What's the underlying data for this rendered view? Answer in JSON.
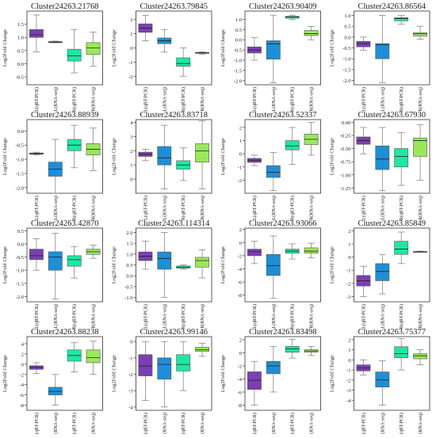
{
  "figure": {
    "colors": {
      "L(qRT-PCR)": "#7b3fb4",
      "L(RNA-seq)": "#1e8fd6",
      "R(qRT-PCR)": "#1de8a3",
      "R(RNA-seq)": "#9ae85a"
    }
  },
  "chart_data": [
    {
      "type": "box",
      "title": "Cluster24263.21768",
      "ylabel": "Log2Fold Change",
      "categories": [
        "L(qRT-PCR)",
        "L(RNA-seq)",
        "R(qRT-PCR)",
        "R(RNA-seq)"
      ],
      "ylim": [
        -0.8,
        2.0
      ],
      "yticks": [
        -0.5,
        0.0,
        0.5,
        1.0,
        1.5
      ],
      "series": [
        {
          "whisker_low": 0.45,
          "q1": 1.0,
          "median": 1.1,
          "q3": 1.3,
          "whisker_high": 1.85
        },
        {
          "whisker_low": 0.8,
          "q1": 0.8,
          "median": 0.82,
          "q3": 0.84,
          "whisker_high": 0.86
        },
        {
          "whisker_low": -0.35,
          "q1": 0.1,
          "median": 0.3,
          "q3": 0.55,
          "whisker_high": 1.3
        },
        {
          "whisker_low": -0.1,
          "q1": 0.35,
          "median": 0.6,
          "q3": 0.8,
          "whisker_high": 1.2
        }
      ]
    },
    {
      "type": "box",
      "title": "Cluster24263.79845",
      "ylabel": "Log2Fold Change",
      "categories": [
        "L(qRT-PCR)",
        "L(RNA-seq)",
        "R(qRT-PCR)",
        "R(RNA-seq)"
      ],
      "ylim": [
        -2.6,
        2.6
      ],
      "yticks": [
        -2,
        -1,
        0,
        1,
        2
      ],
      "series": [
        {
          "whisker_low": 0.5,
          "q1": 1.1,
          "median": 1.4,
          "q3": 1.7,
          "whisker_high": 2.3
        },
        {
          "whisker_low": -0.3,
          "q1": 0.3,
          "median": 0.5,
          "q3": 0.7,
          "whisker_high": 1.3
        },
        {
          "whisker_low": -2.0,
          "q1": -1.3,
          "median": -1.1,
          "q3": -0.7,
          "whisker_high": 0.0
        },
        {
          "whisker_low": -0.45,
          "q1": -0.38,
          "median": -0.35,
          "q3": -0.32,
          "whisker_high": -0.28
        }
      ]
    },
    {
      "type": "box",
      "title": "Cluster24263.90409",
      "ylabel": "Log2Fold Change",
      "categories": [
        "L(qRT-PCR)",
        "L(RNA-seq)",
        "R(qRT-PCR)",
        "R(RNA-seq)"
      ],
      "ylim": [
        -2.2,
        1.4
      ],
      "yticks": [
        -2.0,
        -1.5,
        -1.0,
        -0.5,
        0.0,
        0.5,
        1.0
      ],
      "series": [
        {
          "whisker_low": -1.0,
          "q1": -0.65,
          "median": -0.5,
          "q3": -0.35,
          "whisker_high": 0.1
        },
        {
          "whisker_low": -2.1,
          "q1": -0.95,
          "median": -0.2,
          "q3": -0.05,
          "whisker_high": 1.2
        },
        {
          "whisker_low": 0.98,
          "q1": 1.05,
          "median": 1.1,
          "q3": 1.15,
          "whisker_high": 1.2
        },
        {
          "whisker_low": 0.0,
          "q1": 0.2,
          "median": 0.3,
          "q3": 0.45,
          "whisker_high": 0.65
        }
      ]
    },
    {
      "type": "box",
      "title": "Cluster24263.86564",
      "ylabel": "Log2Fold Change",
      "categories": [
        "L(qRT-PCR)",
        "L(RNA-seq)",
        "R(qRT-PCR)",
        "R(RNA-seq)"
      ],
      "ylim": [
        -2.2,
        1.2
      ],
      "yticks": [
        -2.0,
        -1.5,
        -1.0,
        -0.5,
        0.0,
        0.5,
        1.0
      ],
      "series": [
        {
          "whisker_low": -0.6,
          "q1": -0.45,
          "median": -0.3,
          "q3": -0.2,
          "whisker_high": 0.0
        },
        {
          "whisker_low": -2.1,
          "q1": -1.0,
          "median": -0.35,
          "q3": -0.3,
          "whisker_high": 1.0
        },
        {
          "whisker_low": 0.6,
          "q1": 0.75,
          "median": 0.85,
          "q3": 0.9,
          "whisker_high": 1.0
        },
        {
          "whisker_low": -0.1,
          "q1": 0.05,
          "median": 0.15,
          "q3": 0.2,
          "whisker_high": 0.5
        }
      ]
    },
    {
      "type": "box",
      "title": "Cluster24263.88939",
      "ylabel": "Log2Fold Change",
      "categories": [
        "L(qRT-PCR)",
        "L(RNA-seq)",
        "R(qRT-PCR)",
        "R(RNA-seq)"
      ],
      "ylim": [
        -2.2,
        0.4
      ],
      "yticks": [
        -2.0,
        -1.5,
        -1.0,
        -0.5,
        0.0
      ],
      "series": [
        {
          "whisker_low": -0.85,
          "q1": -0.82,
          "median": -0.8,
          "q3": -0.78,
          "whisker_high": -0.75
        },
        {
          "whisker_low": -2.2,
          "q1": -1.6,
          "median": -1.35,
          "q3": -1.1,
          "whisker_high": -0.3
        },
        {
          "whisker_low": -1.3,
          "q1": -0.7,
          "median": -0.5,
          "q3": -0.3,
          "whisker_high": 0.2
        },
        {
          "whisker_low": -1.4,
          "q1": -0.85,
          "median": -0.65,
          "q3": -0.45,
          "whisker_high": 0.1
        }
      ]
    },
    {
      "type": "box",
      "title": "Cluster24263.83718",
      "ylabel": "Log2Fold Change",
      "categories": [
        "L(qRT-PCR)",
        "L(RNA-seq)",
        "R(qRT-PCR)",
        "R(RNA-seq)"
      ],
      "ylim": [
        -1.0,
        4.2
      ],
      "yticks": [
        0,
        1,
        2,
        3,
        4
      ],
      "series": [
        {
          "whisker_low": 1.3,
          "q1": 1.6,
          "median": 1.75,
          "q3": 1.9,
          "whisker_high": 2.1
        },
        {
          "whisker_low": -0.7,
          "q1": 1.0,
          "median": 1.5,
          "q3": 2.3,
          "whisker_high": 3.8
        },
        {
          "whisker_low": -0.1,
          "q1": 0.7,
          "median": 1.0,
          "q3": 1.3,
          "whisker_high": 2.2
        },
        {
          "whisker_low": -0.7,
          "q1": 1.2,
          "median": 2.0,
          "q3": 2.5,
          "whisker_high": 4.1
        }
      ]
    },
    {
      "type": "box",
      "title": "Cluster24263.52337",
      "ylabel": "Log2Fold Change",
      "categories": [
        "L(qRT-PCR)",
        "L(RNA-seq)",
        "R(qRT-PCR)",
        "R(RNA-seq)"
      ],
      "ylim": [
        -3.0,
        2.6
      ],
      "yticks": [
        -2,
        -1,
        0,
        1,
        2
      ],
      "series": [
        {
          "whisker_low": -0.9,
          "q1": -0.65,
          "median": -0.5,
          "q3": -0.35,
          "whisker_high": -0.1
        },
        {
          "whisker_low": -2.8,
          "q1": -1.8,
          "median": -1.4,
          "q3": -0.9,
          "whisker_high": 0.1
        },
        {
          "whisker_low": -0.8,
          "q1": 0.3,
          "median": 0.6,
          "q3": 1.0,
          "whisker_high": 2.0
        },
        {
          "whisker_low": -0.1,
          "q1": 0.7,
          "median": 1.1,
          "q3": 1.5,
          "whisker_high": 2.4
        }
      ]
    },
    {
      "type": "box",
      "title": "Cluster24263.67930",
      "ylabel": "Log2Fold Change",
      "categories": [
        "L(qRT-PCR)",
        "L(RNA-seq)",
        "R(qRT-PCR)",
        "R(RNA-seq)"
      ],
      "ylim": [
        -1.35,
        0.05
      ],
      "yticks": [
        -1.25,
        -1.0,
        -0.75,
        -0.5,
        -0.25,
        0.0
      ],
      "series": [
        {
          "whisker_low": -0.6,
          "q1": -0.42,
          "median": -0.35,
          "q3": -0.28,
          "whisker_high": -0.1
        },
        {
          "whisker_low": -1.3,
          "q1": -0.9,
          "median": -0.7,
          "q3": -0.45,
          "whisker_high": -0.1
        },
        {
          "whisker_low": -1.2,
          "q1": -0.85,
          "median": -0.65,
          "q3": -0.5,
          "whisker_high": -0.2
        },
        {
          "whisker_low": -1.1,
          "q1": -0.65,
          "median": -0.35,
          "q3": -0.3,
          "whisker_high": -0.05
        }
      ]
    },
    {
      "type": "box",
      "title": "Cluster24263.42870",
      "ylabel": "Log2Fold Change",
      "categories": [
        "L(qRT-PCR)",
        "L(RNA-seq)",
        "R(qRT-PCR)",
        "R(RNA-seq)"
      ],
      "ylim": [
        -2.2,
        0.6
      ],
      "yticks": [
        -2.0,
        -1.5,
        -1.0,
        -0.5,
        0.0,
        0.5
      ],
      "series": [
        {
          "whisker_low": -1.0,
          "q1": -0.6,
          "median": -0.45,
          "q3": -0.2,
          "whisker_high": 0.2
        },
        {
          "whisker_low": -2.1,
          "q1": -1.0,
          "median": -0.5,
          "q3": -0.3,
          "whisker_high": 0.4
        },
        {
          "whisker_low": -1.3,
          "q1": -0.85,
          "median": -0.6,
          "q3": -0.45,
          "whisker_high": -0.1
        },
        {
          "whisker_low": -0.55,
          "q1": -0.4,
          "median": -0.3,
          "q3": -0.2,
          "whisker_high": -0.05
        }
      ]
    },
    {
      "type": "box",
      "title": "Cluster24263.114314",
      "ylabel": "Log2Fold Change",
      "categories": [
        "L(qRT-PCR)",
        "L(RNA-seq)",
        "R(qRT-PCR)",
        "R(RNA-seq)"
      ],
      "ylim": [
        -1.2,
        2.2
      ],
      "yticks": [
        -1.0,
        -0.5,
        0.0,
        0.5,
        1.0,
        1.5,
        2.0
      ],
      "series": [
        {
          "whisker_low": 0.3,
          "q1": 0.7,
          "median": 0.9,
          "q3": 1.1,
          "whisker_high": 1.6
        },
        {
          "whisker_low": -1.0,
          "q1": 0.3,
          "median": 0.8,
          "q3": 1.1,
          "whisker_high": 2.0
        },
        {
          "whisker_low": 0.3,
          "q1": 0.35,
          "median": 0.4,
          "q3": 0.45,
          "whisker_high": 0.5
        },
        {
          "whisker_low": -0.1,
          "q1": 0.4,
          "median": 0.7,
          "q3": 0.85,
          "whisker_high": 1.2
        }
      ]
    },
    {
      "type": "box",
      "title": "Cluster24263.93066",
      "ylabel": "Log2Fold Change",
      "categories": [
        "L(qRT-PCR)",
        "L(RNA-seq)",
        "R(qRT-PCR)",
        "R(RNA-seq)"
      ],
      "ylim": [
        -9.0,
        2.2
      ],
      "yticks": [
        -8,
        -6,
        -4,
        -2,
        0,
        2
      ],
      "series": [
        {
          "whisker_low": -3.2,
          "q1": -2.0,
          "median": -1.4,
          "q3": -1.0,
          "whisker_high": 0.2
        },
        {
          "whisker_low": -8.5,
          "q1": -5.0,
          "median": -3.5,
          "q3": -1.8,
          "whisker_high": 1.0
        },
        {
          "whisker_low": -2.5,
          "q1": -1.6,
          "median": -1.3,
          "q3": -1.0,
          "whisker_high": -0.2
        },
        {
          "whisker_low": -2.3,
          "q1": -1.6,
          "median": -1.3,
          "q3": -0.8,
          "whisker_high": -0.1
        }
      ]
    },
    {
      "type": "box",
      "title": "Cluster24263.85849",
      "ylabel": "Log2Fold Change",
      "categories": [
        "L(qRT-PCR)",
        "L(RNA-seq)",
        "R(qRT-PCR)",
        "R(RNA-seq)"
      ],
      "ylim": [
        -3.4,
        2.2
      ],
      "yticks": [
        -3,
        -2,
        -1,
        0,
        1,
        2
      ],
      "series": [
        {
          "whisker_low": -3.0,
          "q1": -2.2,
          "median": -1.8,
          "q3": -1.4,
          "whisker_high": -0.7
        },
        {
          "whisker_low": -2.8,
          "q1": -1.8,
          "median": -1.1,
          "q3": -0.5,
          "whisker_high": 0.2
        },
        {
          "whisker_low": -0.5,
          "q1": 0.2,
          "median": 0.6,
          "q3": 1.2,
          "whisker_high": 1.9
        },
        {
          "whisker_low": 0.35,
          "q1": 0.38,
          "median": 0.4,
          "q3": 0.42,
          "whisker_high": 0.45
        }
      ]
    },
    {
      "type": "box",
      "title": "Cluster24263.88238",
      "ylabel": "Log2Fold Change",
      "categories": [
        "L(qRT-PCR)",
        "L(RNA-seq)",
        "R(qRT-PCR)",
        "R(RNA-seq)"
      ],
      "ylim": [
        -9.0,
        5.4
      ],
      "yticks": [
        -8,
        -6,
        -4,
        -2,
        0,
        2,
        4
      ],
      "series": [
        {
          "whisker_low": -1.8,
          "q1": -1.0,
          "median": -0.6,
          "q3": -0.3,
          "whisker_high": 0.3
        },
        {
          "whisker_low": -8.0,
          "q1": -6.0,
          "median": -5.3,
          "q3": -4.5,
          "whisker_high": -2.0
        },
        {
          "whisker_low": -1.5,
          "q1": 0.6,
          "median": 1.7,
          "q3": 2.8,
          "whisker_high": 4.2
        },
        {
          "whisker_low": -2.0,
          "q1": 0.3,
          "median": 1.3,
          "q3": 2.8,
          "whisker_high": 4.5
        }
      ]
    },
    {
      "type": "box",
      "title": "Cluster24263.99146",
      "ylabel": "Log2Fold Change",
      "categories": [
        "L(qRT-PCR)",
        "L(RNA-seq)",
        "R(qRT-PCR)",
        "R(RNA-seq)"
      ],
      "ylim": [
        -4.2,
        0.3
      ],
      "yticks": [
        -4,
        -3,
        -2,
        -1,
        0
      ],
      "series": [
        {
          "whisker_low": -3.6,
          "q1": -2.1,
          "median": -1.5,
          "q3": -0.8,
          "whisker_high": 0.0
        },
        {
          "whisker_low": -4.0,
          "q1": -2.3,
          "median": -1.4,
          "q3": -1.0,
          "whisker_high": 0.0
        },
        {
          "whisker_low": -3.0,
          "q1": -1.8,
          "median": -1.4,
          "q3": -0.8,
          "whisker_high": 0.0
        },
        {
          "whisker_low": -0.9,
          "q1": -0.6,
          "median": -0.5,
          "q3": -0.35,
          "whisker_high": -0.1
        }
      ]
    },
    {
      "type": "box",
      "title": "Cluster24263.83498",
      "ylabel": "Log2Fold Change",
      "categories": [
        "L(qRT-PCR)",
        "L(RNA-seq)",
        "R(qRT-PCR)",
        "R(RNA-seq)"
      ],
      "ylim": [
        -8.8,
        2.5
      ],
      "yticks": [
        -8,
        -6,
        -4,
        -2,
        0,
        2
      ],
      "series": [
        {
          "whisker_low": -8.0,
          "q1": -5.6,
          "median": -4.2,
          "q3": -2.9,
          "whisker_high": -1.3
        },
        {
          "whisker_low": -6.0,
          "q1": -3.2,
          "median": -2.0,
          "q3": -1.3,
          "whisker_high": 1.0
        },
        {
          "whisker_low": -0.8,
          "q1": 0.1,
          "median": 0.6,
          "q3": 1.0,
          "whisker_high": 2.1
        },
        {
          "whisker_low": -0.4,
          "q1": 0.1,
          "median": 0.3,
          "q3": 0.5,
          "whisker_high": 1.0
        }
      ]
    },
    {
      "type": "box",
      "title": "Cluster24263.75377",
      "ylabel": "Log2Fold Change",
      "categories": [
        "L(qRT-PCR)",
        "L(RNA-seq)",
        "R(qRT-PCR)",
        "R(RNA-seq)"
      ],
      "ylim": [
        -5.0,
        2.3
      ],
      "yticks": [
        -4,
        -3,
        -2,
        -1,
        0,
        1,
        2
      ],
      "series": [
        {
          "whisker_low": -1.5,
          "q1": -1.1,
          "median": -0.8,
          "q3": -0.5,
          "whisker_high": 0.0
        },
        {
          "whisker_low": -4.5,
          "q1": -2.7,
          "median": -2.0,
          "q3": -1.2,
          "whisker_high": -0.1
        },
        {
          "whisker_low": -1.0,
          "q1": 0.2,
          "median": 0.6,
          "q3": 1.3,
          "whisker_high": 2.1
        },
        {
          "whisker_low": -0.5,
          "q1": 0.1,
          "median": 0.4,
          "q3": 0.6,
          "whisker_high": 1.0
        }
      ]
    }
  ]
}
